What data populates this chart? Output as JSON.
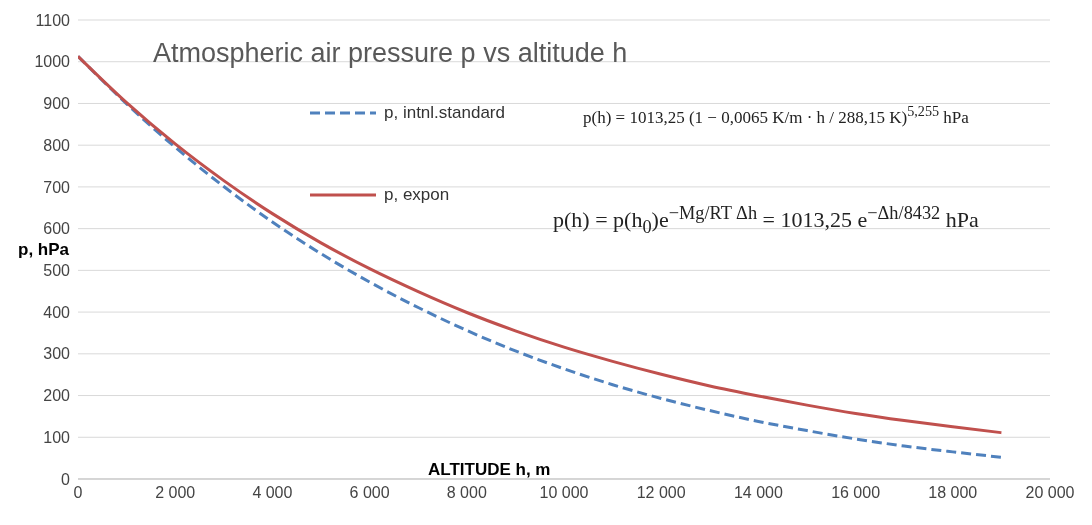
{
  "chart_data": {
    "type": "line",
    "title": "Atmospheric air pressure p vs altitude h",
    "xlabel": "ALTITUDE h, m",
    "ylabel": "p, hPa",
    "x": [
      0,
      1000,
      2000,
      3000,
      4000,
      5000,
      6000,
      7000,
      8000,
      9000,
      10000,
      11000,
      12000,
      13000,
      14000,
      15000,
      16000,
      17000,
      18000,
      19000
    ],
    "series": [
      {
        "name": "p, intnl.standard",
        "color": "#4f81bd",
        "line_style": "dashed",
        "values": [
          1013,
          899,
          795,
          701,
          616,
          540,
          472,
          411,
          356,
          307,
          264,
          226,
          193,
          164,
          138,
          116,
          96,
          79,
          65,
          52
        ]
      },
      {
        "name": "p, expon",
        "color": "#c0504d",
        "line_style": "solid",
        "values": [
          1013,
          902,
          803,
          715,
          636,
          566,
          504,
          449,
          399,
          355,
          316,
          282,
          251,
          223,
          199,
          177,
          157,
          140,
          125,
          111
        ]
      }
    ],
    "xlim": [
      0,
      20000
    ],
    "xticks": [
      0,
      {
        "value": 2000,
        "label": "2 000"
      },
      {
        "value": 4000,
        "label": "4 000"
      },
      {
        "value": 6000,
        "label": "6 000"
      },
      {
        "value": 8000,
        "label": "8 000"
      },
      {
        "value": 10000,
        "label": "10 000"
      },
      {
        "value": 12000,
        "label": "12 000"
      },
      {
        "value": 14000,
        "label": "14 000"
      },
      {
        "value": 16000,
        "label": "16 000"
      },
      {
        "value": 18000,
        "label": "18 000"
      },
      {
        "value": 20000,
        "label": "20 000"
      }
    ],
    "ylim": [
      0,
      1100
    ],
    "yticks": [
      0,
      100,
      200,
      300,
      400,
      500,
      600,
      700,
      800,
      900,
      1000,
      1100
    ],
    "grid": "y",
    "legend": "top",
    "marker": "none",
    "annotations": [
      "p(h) = 1013,25 (1 − 0,0065 K/m · h / 288,15 K)$^{5,255}$ hPa",
      "p(h) = p(h$_{0}$)e$^{−Mg/RT Δh}$ = 1013,25 e$^{−Δh/8432}$ hPa"
    ]
  }
}
